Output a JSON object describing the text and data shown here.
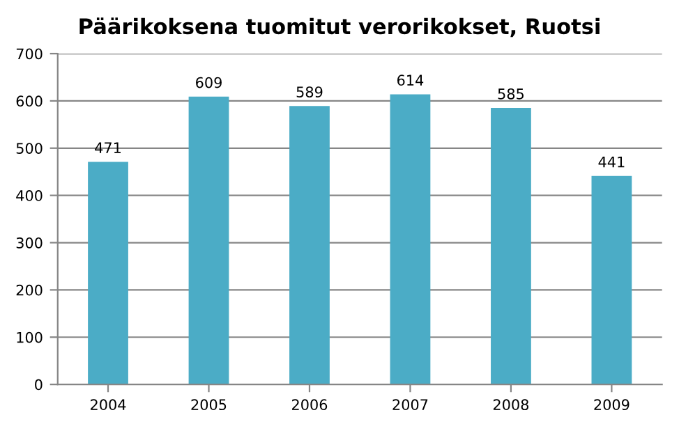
{
  "chart_data": {
    "type": "bar",
    "title": "Päärikoksena tuomitut verorikokset, Ruotsi",
    "categories": [
      "2004",
      "2005",
      "2006",
      "2007",
      "2008",
      "2009"
    ],
    "values": [
      471,
      609,
      589,
      614,
      585,
      441
    ],
    "color": "#4bacc6",
    "ylim": [
      0,
      700
    ],
    "yticks": [
      0,
      100,
      200,
      300,
      400,
      500,
      600,
      700
    ],
    "grid": "y",
    "data_labels": true
  }
}
